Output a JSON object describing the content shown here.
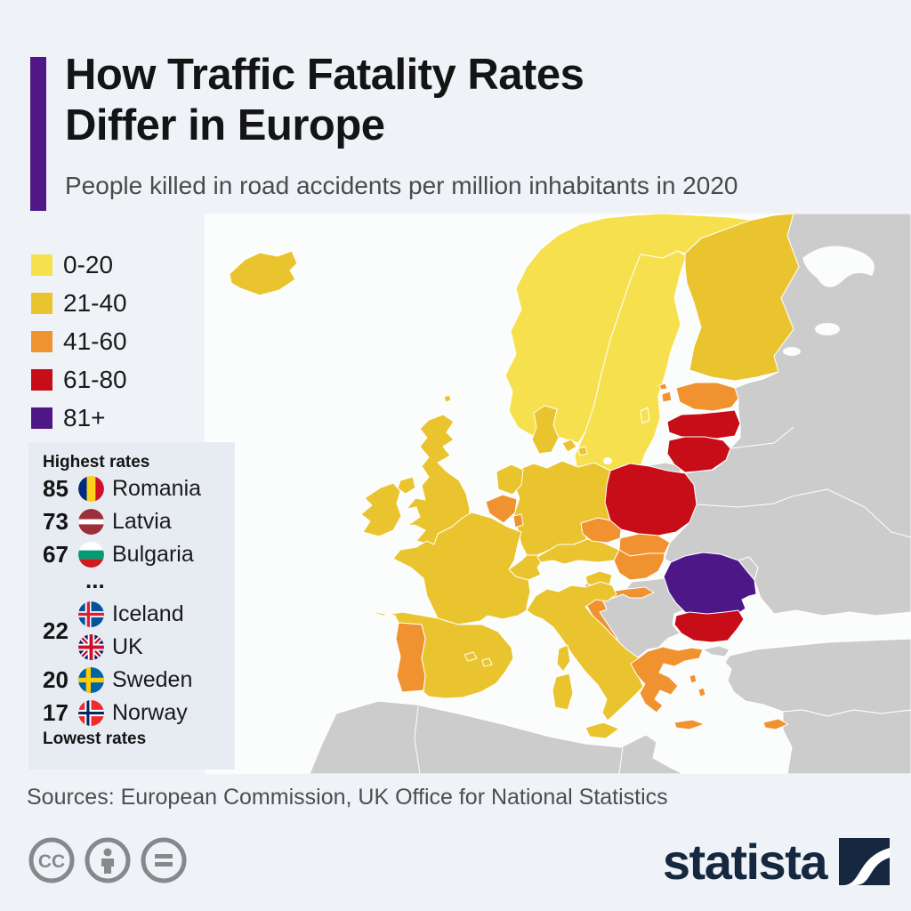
{
  "header": {
    "title_line1": "How Traffic Fatality Rates",
    "title_line2": "Differ in Europe",
    "subtitle": "People killed in road accidents per million inhabitants in 2020",
    "accent_color": "#4F1787"
  },
  "legend": {
    "items": [
      {
        "label": "0-20",
        "color": "#F7E04E"
      },
      {
        "label": "21-40",
        "color": "#E9C42E"
      },
      {
        "label": "41-60",
        "color": "#F0922F"
      },
      {
        "label": "61-80",
        "color": "#C60D18"
      },
      {
        "label": "81+",
        "color": "#4E1787"
      }
    ]
  },
  "rates_box": {
    "top_label": "Highest rates",
    "bottom_label": "Lowest rates",
    "ellipsis": "...",
    "rows": [
      {
        "type": "single",
        "value": "85",
        "flag": "ro",
        "country": "Romania"
      },
      {
        "type": "single",
        "value": "73",
        "flag": "lv",
        "country": "Latvia"
      },
      {
        "type": "single",
        "value": "67",
        "flag": "bg",
        "country": "Bulgaria"
      },
      {
        "type": "ellipsis"
      },
      {
        "type": "group",
        "value": "22",
        "entries": [
          {
            "flag": "is",
            "country": "Iceland"
          },
          {
            "flag": "uk",
            "country": "UK"
          }
        ]
      },
      {
        "type": "single",
        "value": "20",
        "flag": "se",
        "country": "Sweden"
      },
      {
        "type": "single",
        "value": "17",
        "flag": "no",
        "country": "Norway"
      }
    ]
  },
  "chart_data": {
    "type": "choropleth",
    "title": "How Traffic Fatality Rates Differ in Europe",
    "subtitle": "People killed in road accidents per million inhabitants in 2020",
    "unit": "road deaths per million inhabitants",
    "year": "2020",
    "legend_categories": [
      {
        "label": "0-20",
        "color": "#F7E04E"
      },
      {
        "label": "21-40",
        "color": "#E9C42E"
      },
      {
        "label": "41-60",
        "color": "#F0922F"
      },
      {
        "label": "61-80",
        "color": "#C60D18"
      },
      {
        "label": "81+",
        "color": "#4E1787"
      }
    ],
    "country_categories": {
      "Iceland": "21-40",
      "Norway": "0-20",
      "Sweden": "0-20",
      "Finland": "21-40",
      "Denmark": "21-40",
      "UK": "21-40",
      "Ireland": "21-40",
      "Estonia": "41-60",
      "Latvia": "61-80",
      "Lithuania": "61-80",
      "Poland": "61-80",
      "Germany": "21-40",
      "Netherlands": "21-40",
      "Belgium": "41-60",
      "Luxembourg": "41-60",
      "France": "21-40",
      "Spain": "21-40",
      "Portugal": "41-60",
      "Italy": "21-40",
      "Switzerland": "21-40",
      "Austria": "21-40",
      "Czechia": "41-60",
      "Slovakia": "41-60",
      "Hungary": "41-60",
      "Slovenia": "21-40",
      "Croatia": "41-60",
      "Romania": "81+",
      "Bulgaria": "61-80",
      "Greece": "41-60",
      "Cyprus": "41-60"
    },
    "labeled_values": {
      "Romania": 85,
      "Latvia": 73,
      "Bulgaria": 67,
      "Iceland": 22,
      "UK": 22,
      "Sweden": 20,
      "Norway": 17
    }
  },
  "footer": {
    "sources": "Sources: European Commission, UK Office for National Statistics",
    "license_icons": [
      "cc",
      "by",
      "nd"
    ],
    "brand": "statista"
  }
}
